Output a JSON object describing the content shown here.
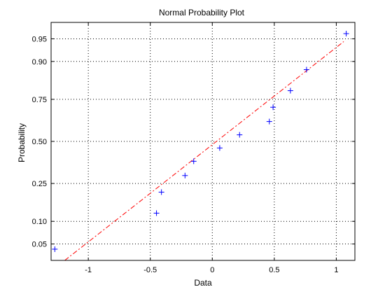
{
  "chart_data": {
    "type": "scatter",
    "title": "Normal Probability Plot",
    "xlabel": "Data",
    "ylabel": "Probability",
    "xlim": [
      -1.3,
      1.15
    ],
    "x_ticks": [
      -1,
      -0.5,
      0,
      0.5,
      1
    ],
    "x_tick_labels": [
      "-1",
      "-0.5",
      "0",
      "0.5",
      "1"
    ],
    "y_scale": "normal-probability",
    "ylim_probability": [
      0.0282,
      0.9718
    ],
    "y_ticks": [
      0.05,
      0.1,
      0.25,
      0.5,
      0.75,
      0.9,
      0.95
    ],
    "y_tick_labels": [
      "0.05",
      "0.10",
      "0.25",
      "0.50",
      "0.75",
      "0.90",
      "0.95"
    ],
    "grid": true,
    "series": [
      {
        "marker": "+",
        "color": "#0000ff",
        "x": [
          -1.27,
          -0.45,
          -0.41,
          -0.22,
          -0.15,
          0.06,
          0.22,
          0.46,
          0.49,
          0.63,
          0.76,
          1.08
        ],
        "y": [
          0.042,
          0.125,
          0.208,
          0.292,
          0.375,
          0.458,
          0.542,
          0.625,
          0.708,
          0.792,
          0.875,
          0.958
        ]
      }
    ],
    "reference_line": {
      "style": "dash-dot",
      "color": "#ff0000",
      "x": [
        -1.19,
        1.06
      ],
      "y": [
        0.0282,
        0.9453
      ]
    }
  }
}
